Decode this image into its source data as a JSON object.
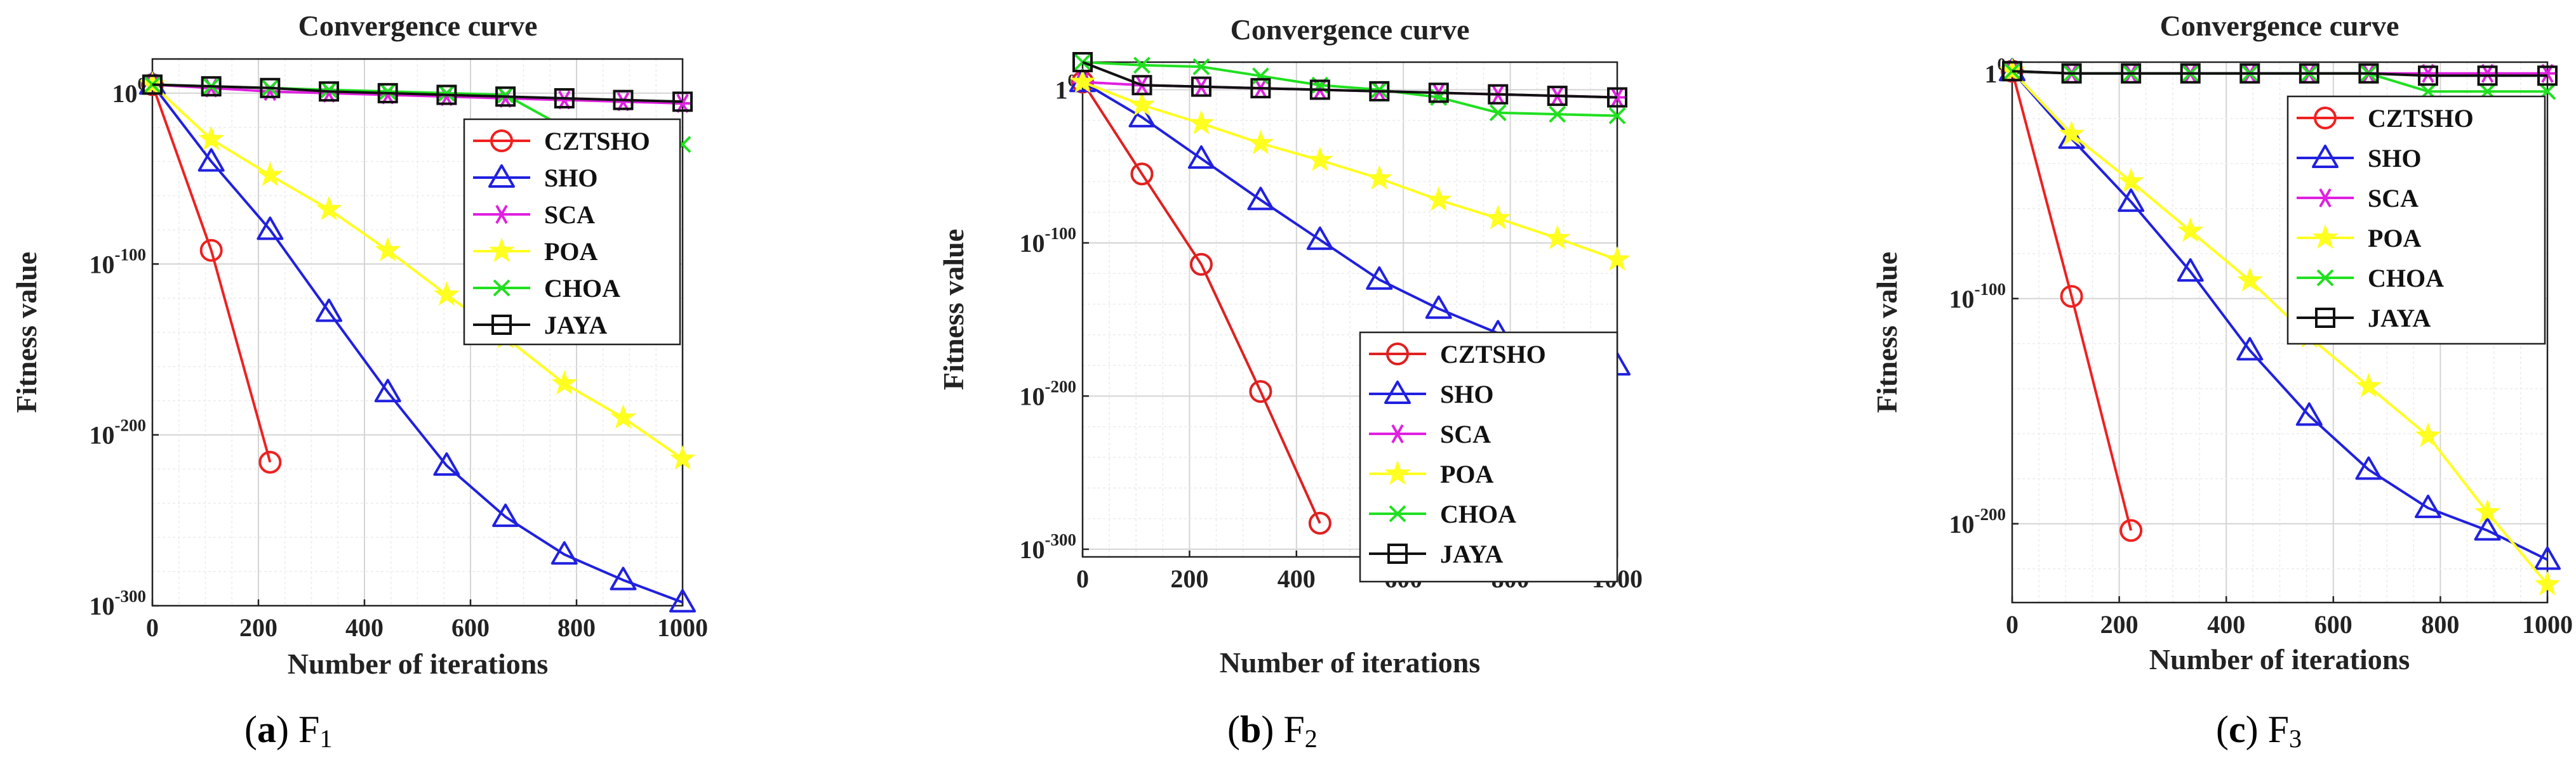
{
  "chart_data": [
    {
      "type": "line",
      "title": "Convergence curve",
      "xlabel": "Number of iterations",
      "ylabel": "Fitness value",
      "yscale": "log",
      "ylim_exp": [
        -300,
        20
      ],
      "xlim": [
        0,
        1000
      ],
      "xticks": [
        0,
        200,
        400,
        600,
        800,
        1000
      ],
      "yticks": [
        {
          "base": "10",
          "exp": "0",
          "value": 0
        },
        {
          "base": "10",
          "exp": "-100",
          "value": -100
        },
        {
          "base": "10",
          "exp": "-200",
          "value": -200
        },
        {
          "base": "10",
          "exp": "-300",
          "value": -300
        }
      ],
      "legend_position": "top-right",
      "caption": {
        "label": "(a)",
        "letter": "a",
        "func": "F",
        "sub": "1"
      },
      "series": [
        {
          "name": "CZTSHO",
          "marker": "circle",
          "color": "#f02020",
          "x": [
            0,
            111,
            222
          ],
          "y": [
            5,
            -92,
            -216
          ]
        },
        {
          "name": "SHO",
          "marker": "triangle",
          "color": "#2020e0",
          "x": [
            0,
            111,
            222,
            333,
            444,
            555,
            666,
            777,
            888,
            1000
          ],
          "y": [
            5,
            -40,
            -80,
            -128,
            -175,
            -218,
            -248,
            -270,
            -285,
            -298
          ]
        },
        {
          "name": "SCA",
          "marker": "star6",
          "color": "#e020e0",
          "x": [
            0,
            111,
            222,
            333,
            444,
            555,
            666,
            777,
            888,
            1000
          ],
          "y": [
            5,
            3,
            1,
            0,
            -1,
            -2,
            -3,
            -4,
            -5,
            -6
          ]
        },
        {
          "name": "POA",
          "marker": "star5",
          "color": "#ffff20",
          "x": [
            0,
            111,
            222,
            333,
            444,
            555,
            666,
            777,
            888,
            1000
          ],
          "y": [
            5,
            -27,
            -48,
            -68,
            -92,
            -118,
            -143,
            -170,
            -190,
            -214
          ]
        },
        {
          "name": "CHOA",
          "marker": "x",
          "color": "#20e020",
          "x": [
            0,
            111,
            222,
            333,
            444,
            555,
            666,
            777,
            888,
            1000
          ],
          "y": [
            5,
            4,
            3,
            2,
            1,
            0,
            -1,
            -20,
            -30,
            -30
          ]
        },
        {
          "name": "JAYA",
          "marker": "square",
          "color": "#111111",
          "x": [
            0,
            111,
            222,
            333,
            444,
            555,
            666,
            777,
            888,
            1000
          ],
          "y": [
            5,
            4,
            3,
            1,
            0,
            -1,
            -2,
            -3,
            -4,
            -5
          ]
        }
      ]
    },
    {
      "type": "line",
      "title": "Convergence curve",
      "xlabel": "Number of iterations",
      "ylabel": "Fitness value",
      "yscale": "log",
      "ylim_exp": [
        -305,
        18
      ],
      "xlim": [
        0,
        1000
      ],
      "xticks": [
        0,
        200,
        400,
        600,
        800,
        1000
      ],
      "yticks": [
        {
          "base": "1",
          "exp": "0",
          "value": 0
        },
        {
          "base": "10",
          "exp": "-100",
          "value": -100
        },
        {
          "base": "10",
          "exp": "-200",
          "value": -200
        },
        {
          "base": "10",
          "exp": "-300",
          "value": -300
        }
      ],
      "legend_position": "bottom-right",
      "caption": {
        "label": "(b)",
        "letter": "b",
        "func": "F",
        "sub": "2"
      },
      "series": [
        {
          "name": "CZTSHO",
          "marker": "circle",
          "color": "#e02020",
          "x": [
            0,
            111,
            222,
            333,
            444
          ],
          "y": [
            5,
            -55,
            -114,
            -197,
            -283
          ]
        },
        {
          "name": "SHO",
          "marker": "triangle",
          "color": "#2020e0",
          "x": [
            0,
            111,
            222,
            333,
            444,
            555,
            666,
            777,
            888,
            1000
          ],
          "y": [
            5,
            -18,
            -45,
            -72,
            -98,
            -124,
            -143,
            -159,
            -170,
            -180
          ]
        },
        {
          "name": "SCA",
          "marker": "star6",
          "color": "#e020e0",
          "x": [
            0,
            111,
            222,
            333,
            444,
            555,
            666,
            777,
            888,
            1000
          ],
          "y": [
            5,
            3,
            2,
            1,
            0,
            -1,
            -2,
            -3,
            -4,
            -5
          ]
        },
        {
          "name": "POA",
          "marker": "star5",
          "color": "#ffff20",
          "x": [
            0,
            111,
            222,
            333,
            444,
            555,
            666,
            777,
            888,
            1000
          ],
          "y": [
            5,
            -10,
            -22,
            -35,
            -46,
            -58,
            -72,
            -84,
            -97,
            -111
          ]
        },
        {
          "name": "CHOA",
          "marker": "x",
          "color": "#20e020",
          "x": [
            0,
            111,
            222,
            333,
            444,
            555,
            666,
            777,
            888,
            1000
          ],
          "y": [
            18,
            16,
            15,
            9,
            3,
            0,
            -5,
            -15,
            -16,
            -17
          ]
        },
        {
          "name": "JAYA",
          "marker": "square",
          "color": "#111111",
          "x": [
            0,
            111,
            222,
            333,
            444,
            555,
            666,
            777,
            888,
            1000
          ],
          "y": [
            18,
            3,
            2,
            1,
            0,
            -1,
            -2,
            -3,
            -4,
            -5
          ]
        }
      ]
    },
    {
      "type": "line",
      "title": "Convergence curve",
      "xlabel": "Number of iterations",
      "ylabel": "Fitness value",
      "yscale": "log",
      "ylim_exp": [
        -235,
        5
      ],
      "xlim": [
        0,
        1000
      ],
      "xticks": [
        0,
        200,
        400,
        600,
        800,
        1000
      ],
      "yticks": [
        {
          "base": "1",
          "exp": "0",
          "value": 0
        },
        {
          "base": "10",
          "exp": "-100",
          "value": -100
        },
        {
          "base": "10",
          "exp": "-200",
          "value": -200
        }
      ],
      "legend_position": "top-right",
      "caption": {
        "label": "(c)",
        "letter": "c",
        "func": "F",
        "sub": "3"
      },
      "series": [
        {
          "name": "CZTSHO",
          "marker": "circle",
          "color": "#f02020",
          "x": [
            0,
            111,
            222
          ],
          "y": [
            1,
            -99,
            -203
          ]
        },
        {
          "name": "SHO",
          "marker": "triangle",
          "color": "#2020e0",
          "x": [
            0,
            111,
            222,
            333,
            444,
            555,
            666,
            777,
            888,
            1000
          ],
          "y": [
            1,
            -29,
            -57,
            -88,
            -123,
            -152,
            -176,
            -193,
            -203,
            -216
          ]
        },
        {
          "name": "SCA",
          "marker": "star6",
          "color": "#e020e0",
          "x": [
            0,
            111,
            222,
            333,
            444,
            555,
            666,
            777,
            888,
            1000
          ],
          "y": [
            1,
            0,
            0,
            0,
            0,
            0,
            0,
            0,
            0,
            0
          ]
        },
        {
          "name": "POA",
          "marker": "star5",
          "color": "#ffff20",
          "x": [
            0,
            111,
            222,
            333,
            444,
            555,
            666,
            777,
            888,
            1000
          ],
          "y": [
            1,
            -27,
            -48,
            -70,
            -92,
            -117,
            -139,
            -161,
            -195,
            -227
          ]
        },
        {
          "name": "CHOA",
          "marker": "x",
          "color": "#20e020",
          "x": [
            0,
            111,
            222,
            333,
            444,
            555,
            666,
            777,
            888,
            1000
          ],
          "y": [
            1,
            0,
            0,
            0,
            0,
            0,
            0,
            -8,
            -8,
            -8
          ]
        },
        {
          "name": "JAYA",
          "marker": "square",
          "color": "#111111",
          "x": [
            0,
            111,
            222,
            333,
            444,
            555,
            666,
            777,
            888,
            1000
          ],
          "y": [
            1,
            0,
            0,
            0,
            0,
            0,
            0,
            -1,
            -1,
            -1
          ]
        }
      ]
    }
  ]
}
